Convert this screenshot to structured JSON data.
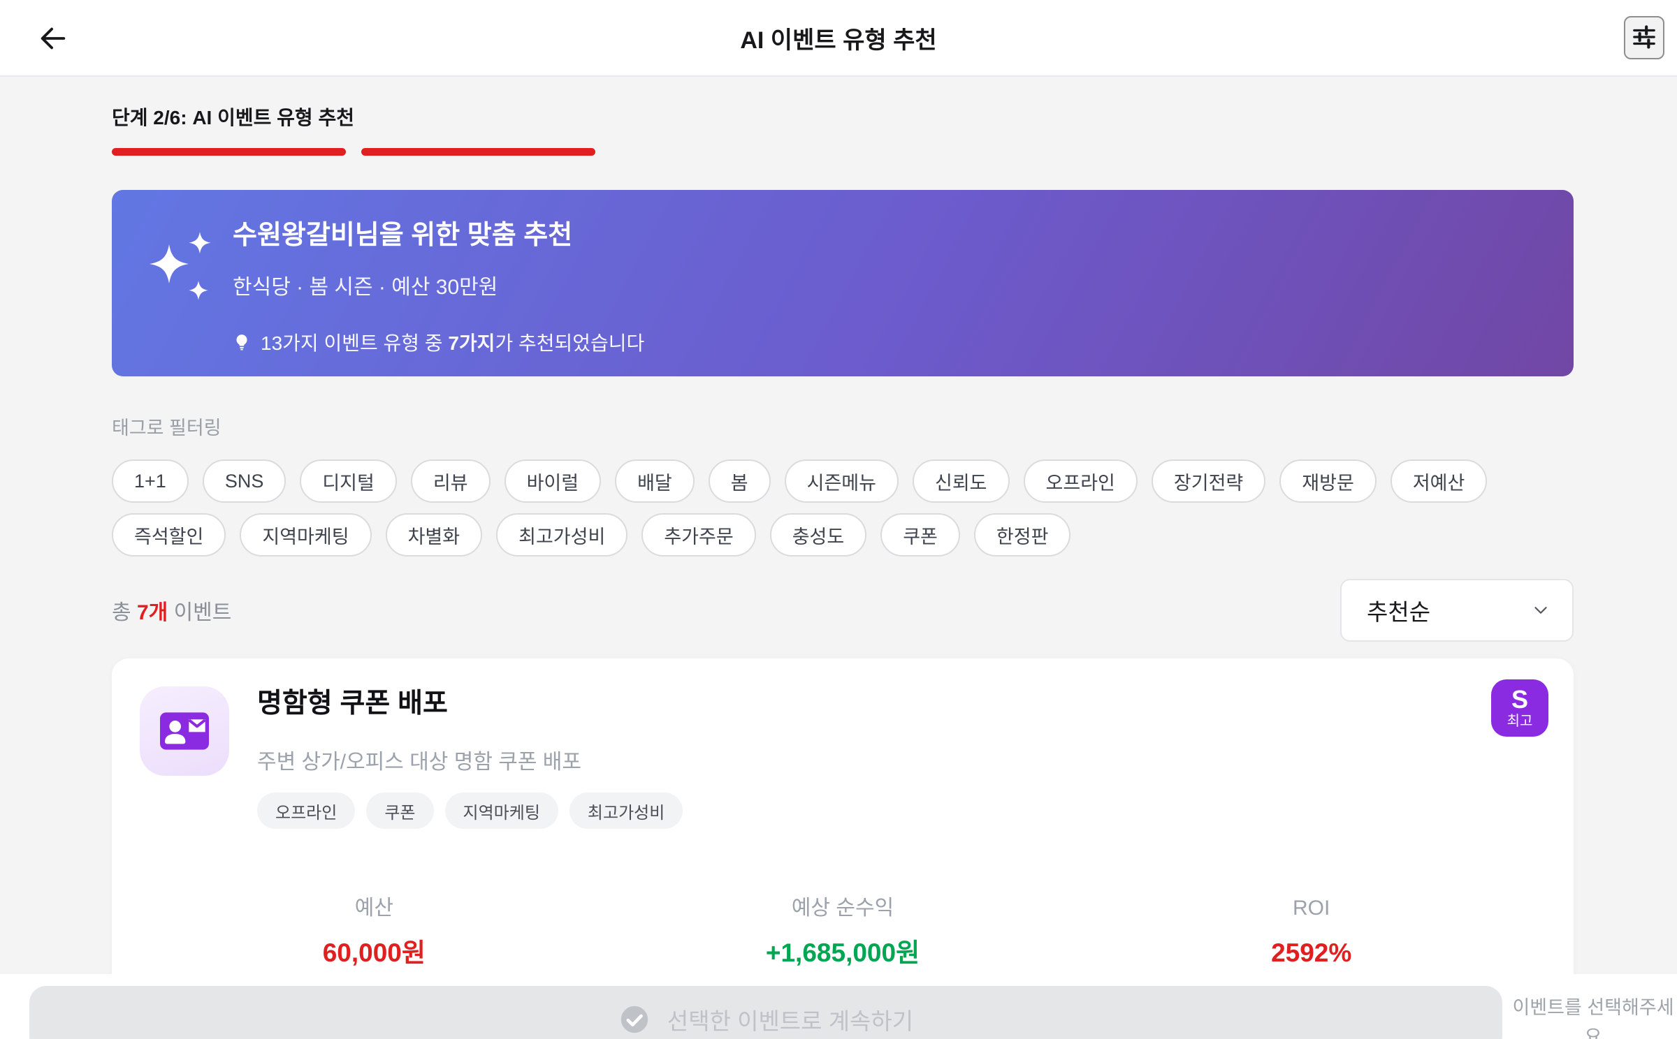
{
  "header": {
    "title": "AI 이벤트 유형 추천",
    "back_icon": "arrow-left",
    "settings_icon": "sliders"
  },
  "progress": {
    "label": "단계 2/6: AI 이벤트 유형 추천",
    "completed": 2,
    "total": 6
  },
  "banner": {
    "icon": "sparkles",
    "title": "수원왕갈비님을 위한 맞춤 추천",
    "subtitle": "한식당 · 봄 시즌 · 예산 30만원",
    "note_icon": "lightbulb",
    "note_prefix": "13가지 이벤트 유형 중 ",
    "note_bold": "7가지",
    "note_suffix": "가 추천되었습니다",
    "gradient_from": "#6277E3",
    "gradient_to": "#7147A5"
  },
  "filter": {
    "label": "태그로 필터링",
    "tags": [
      "1+1",
      "SNS",
      "디지털",
      "리뷰",
      "바이럴",
      "배달",
      "봄",
      "시즌메뉴",
      "신뢰도",
      "오프라인",
      "장기전략",
      "재방문",
      "저예산",
      "즉석할인",
      "지역마케팅",
      "차별화",
      "최고가성비",
      "추가주문",
      "충성도",
      "쿠폰",
      "한정판"
    ]
  },
  "list_header": {
    "count_prefix": "총 ",
    "count": "7개",
    "count_suffix": " 이벤트",
    "sort_value": "추천순",
    "sort_icon": "chevron-down"
  },
  "event_card": {
    "icon": "contact-card-mail",
    "title": "명함형 쿠폰 배포",
    "description": "주변 상가/오피스 대상 명함 쿠폰 배포",
    "badge": {
      "grade": "S",
      "label": "최고",
      "color": "#8A2BE2"
    },
    "tags": [
      "오프라인",
      "쿠폰",
      "지역마케팅",
      "최고가성비"
    ],
    "stats": [
      {
        "label": "예산",
        "value": "60,000원",
        "color": "#E02020"
      },
      {
        "label": "예상 순수익",
        "value": "+1,685,000원",
        "color": "#00A651"
      },
      {
        "label": "ROI",
        "value": "2592%",
        "color": "#E02020"
      }
    ]
  },
  "footer": {
    "button_icon": "check-circle",
    "button_label": "선택한 이벤트로 계속하기",
    "hint": "이벤트를 선택해주세요"
  },
  "colors": {
    "accent_red": "#E02020",
    "profit_green": "#00A651",
    "badge_purple": "#8A2BE2",
    "page_bg": "#F4F4F5"
  }
}
